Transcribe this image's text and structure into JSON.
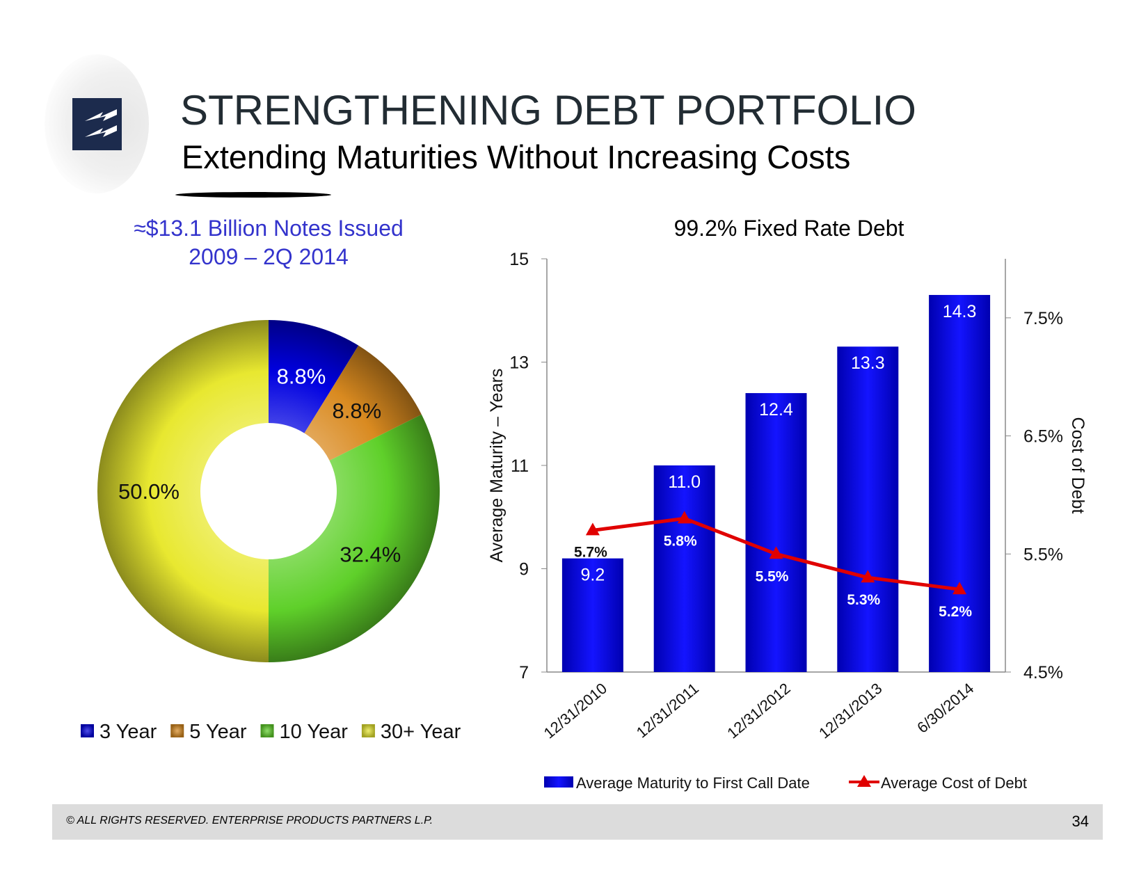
{
  "header": {
    "title": "STRENGTHENING DEBT PORTFOLIO",
    "subtitle": "Extending Maturities Without Increasing Costs",
    "logo_icon": "enterprise-lightning-logo"
  },
  "footer": {
    "copyright": "© ALL RIGHTS RESERVED. ENTERPRISE PRODUCTS PARTNERS L.P.",
    "page_number": "34"
  },
  "chart_data": [
    {
      "type": "pie",
      "donut": true,
      "title": "≈$13.1 Billion Notes Issued",
      "subtitle": "2009 – 2Q 2014",
      "categories": [
        "3 Year",
        "5 Year",
        "10 Year",
        "30+ Year"
      ],
      "values": [
        8.8,
        8.8,
        32.4,
        50.0
      ],
      "labels": [
        "8.8%",
        "8.8%",
        "32.4%",
        "50.0%"
      ],
      "colors": [
        "#0000e0",
        "#d98a20",
        "#5fd02a",
        "#e8e830"
      ],
      "legend_placement": "bottom"
    },
    {
      "type": "bar+line",
      "title": "99.2% Fixed Rate Debt",
      "categories": [
        "12/31/2010",
        "12/31/2011",
        "12/31/2012",
        "12/31/2013",
        "6/30/2014"
      ],
      "series": [
        {
          "name": "Average Maturity to First Call Date",
          "type": "bar",
          "axis": "left",
          "values": [
            9.2,
            11.0,
            12.4,
            13.3,
            14.3
          ],
          "labels": [
            "9.2",
            "11.0",
            "12.4",
            "13.3",
            "14.3"
          ],
          "color": "#0000e6"
        },
        {
          "name": "Average Cost of Debt",
          "type": "line",
          "axis": "right",
          "marker": "triangle",
          "values": [
            5.7,
            5.8,
            5.5,
            5.3,
            5.2
          ],
          "labels": [
            "5.7%",
            "5.8%",
            "5.5%",
            "5.3%",
            "5.2%"
          ],
          "color": "#e00000"
        }
      ],
      "ylabel": "Average Maturity – Years",
      "ylim": [
        7,
        15
      ],
      "yticks": [
        "7",
        "9",
        "11",
        "13",
        "15"
      ],
      "ytick_values": [
        7,
        9,
        11,
        13,
        15
      ],
      "y2label": "Cost of Debt",
      "y2lim": [
        4.5,
        8.0
      ],
      "y2ticks": [
        "4.5%",
        "5.5%",
        "6.5%",
        "7.5%"
      ],
      "y2tick_values": [
        4.5,
        5.5,
        6.5,
        7.5
      ],
      "grid": false,
      "legend_placement": "bottom"
    }
  ]
}
